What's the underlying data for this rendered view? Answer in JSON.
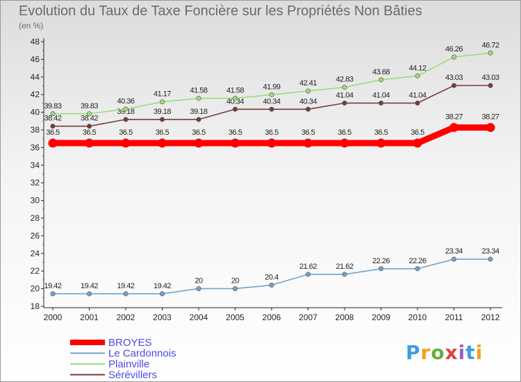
{
  "title": "Evolution du Taux de Taxe Foncière sur les Propriétés Non Bâties",
  "unit": "(en %)",
  "logo": "Proxiti",
  "chart_data": {
    "type": "line",
    "x": [
      "2000",
      "2001",
      "2002",
      "2003",
      "2004",
      "2005",
      "2006",
      "2007",
      "2008",
      "2009",
      "2010",
      "2011",
      "2012"
    ],
    "ylim": [
      18,
      48
    ],
    "yticks": [
      18,
      20,
      22,
      24,
      26,
      28,
      30,
      32,
      34,
      36,
      38,
      40,
      42,
      44,
      46,
      48
    ],
    "grid": false,
    "legend_position": "bottom-left",
    "series": [
      {
        "name": "BROYES",
        "color": "#ff0000",
        "values": [
          36.5,
          36.5,
          36.5,
          36.5,
          36.5,
          36.5,
          36.5,
          36.5,
          36.5,
          36.5,
          36.5,
          38.27,
          38.27
        ],
        "labels": [
          "36.5",
          "36.5",
          "36.5",
          "36.5",
          "36.5",
          "36.5",
          "36.5",
          "36.5",
          "36.5",
          "36.5",
          "36.5",
          "38.27",
          "38.27"
        ]
      },
      {
        "name": "Le Cardonnois",
        "color": "#6fa3cf",
        "values": [
          19.42,
          19.42,
          19.42,
          19.42,
          20,
          20,
          20.4,
          21.62,
          21.62,
          22.26,
          22.26,
          23.34,
          23.34
        ],
        "labels": [
          "19.42",
          "19.42",
          "19.42",
          "19.42",
          "20",
          "20",
          "20.4",
          "21.62",
          "21.62",
          "22.26",
          "22.26",
          "23.34",
          "23.34"
        ]
      },
      {
        "name": "Plainville",
        "color": "#99dd77",
        "values": [
          39.83,
          39.83,
          40.36,
          41.17,
          41.58,
          41.58,
          41.99,
          42.41,
          42.83,
          43.68,
          44.12,
          46.26,
          46.72
        ],
        "labels": [
          "39.83",
          "39.83",
          "40.36",
          "41.17",
          "41.58",
          "41.58",
          "41.99",
          "42.41",
          "42.83",
          "43.68",
          "44.12",
          "46.26",
          "46.72"
        ]
      },
      {
        "name": "Sérévillers",
        "color": "#7a3a3a",
        "values": [
          38.42,
          38.42,
          39.18,
          39.18,
          39.18,
          40.34,
          40.34,
          40.34,
          41.04,
          41.04,
          41.04,
          43.03,
          43.03
        ],
        "labels": [
          "38.42",
          "38.42",
          "39.18",
          "39.18",
          "39.18",
          "40.34",
          "40.34",
          "40.34",
          "41.04",
          "41.04",
          "41.04",
          "43.03",
          "43.03"
        ]
      }
    ]
  }
}
